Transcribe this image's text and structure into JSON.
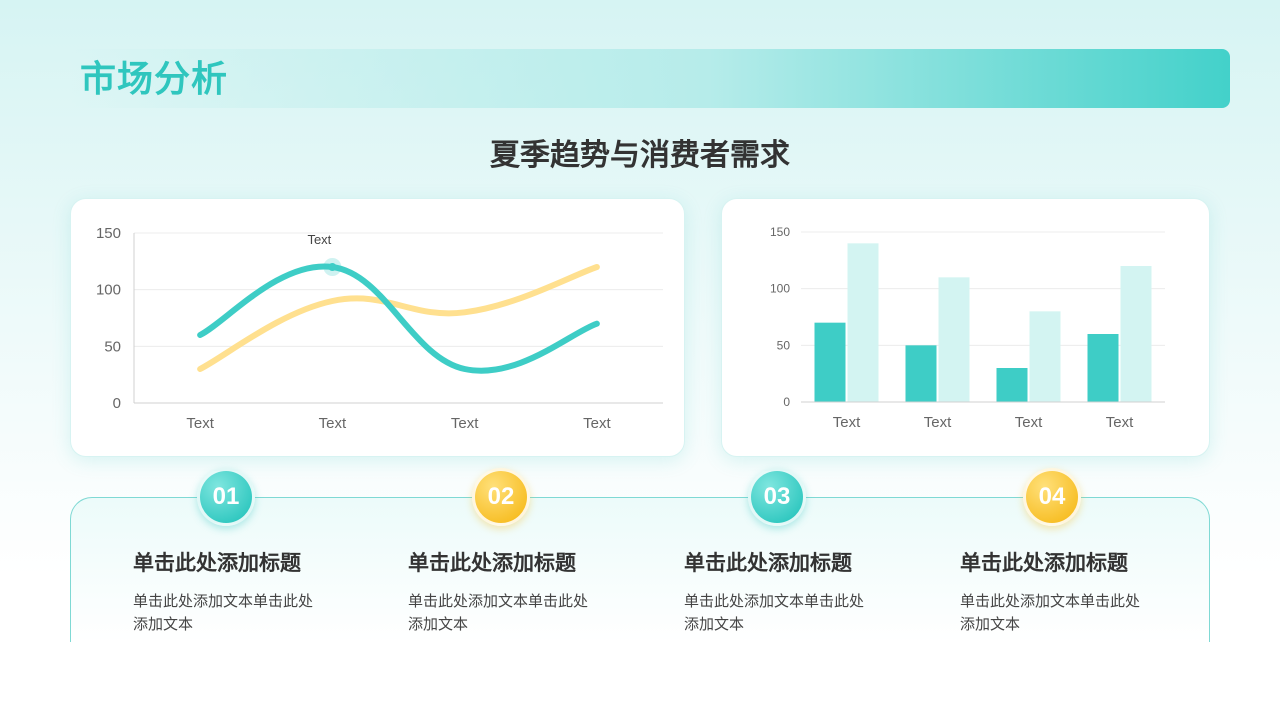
{
  "header": {
    "title": "市场分析"
  },
  "subtitle": "夏季趋势与消费者需求",
  "colors": {
    "teal": "#3ecdc6",
    "yellow": "#ffe08f",
    "bar_light": "#d3f4f2",
    "accent_yellow": "#f7bd22"
  },
  "chart_data": [
    {
      "type": "line",
      "categories": [
        "Text",
        "Text",
        "Text",
        "Text"
      ],
      "ylim": [
        0,
        150
      ],
      "yticks": [
        0,
        50,
        100,
        150
      ],
      "grid": true,
      "smooth": true,
      "series": [
        {
          "color": "#3ecdc6",
          "values": [
            60,
            120,
            30,
            70
          ]
        },
        {
          "color": "#ffe08f",
          "values": [
            30,
            90,
            80,
            120
          ]
        }
      ],
      "annotation": {
        "text": "Text",
        "series": 0,
        "index": 1
      }
    },
    {
      "type": "bar",
      "categories": [
        "Text",
        "Text",
        "Text",
        "Text"
      ],
      "ylim": [
        0,
        150
      ],
      "yticks": [
        0,
        50,
        100,
        150
      ],
      "grid": true,
      "series": [
        {
          "color": "#3ecdc6",
          "values": [
            70,
            50,
            30,
            60
          ]
        },
        {
          "color": "#d3f4f2",
          "values": [
            140,
            110,
            80,
            120
          ]
        }
      ]
    }
  ],
  "steps": [
    {
      "num": "01",
      "title": "单击此处添加标题",
      "body": "单击此处添加文本单击此处添加文本"
    },
    {
      "num": "02",
      "title": "单击此处添加标题",
      "body": "单击此处添加文本单击此处添加文本"
    },
    {
      "num": "03",
      "title": "单击此处添加标题",
      "body": "单击此处添加文本单击此处添加文本"
    },
    {
      "num": "04",
      "title": "单击此处添加标题",
      "body": "单击此处添加文本单击此处添加文本"
    }
  ]
}
